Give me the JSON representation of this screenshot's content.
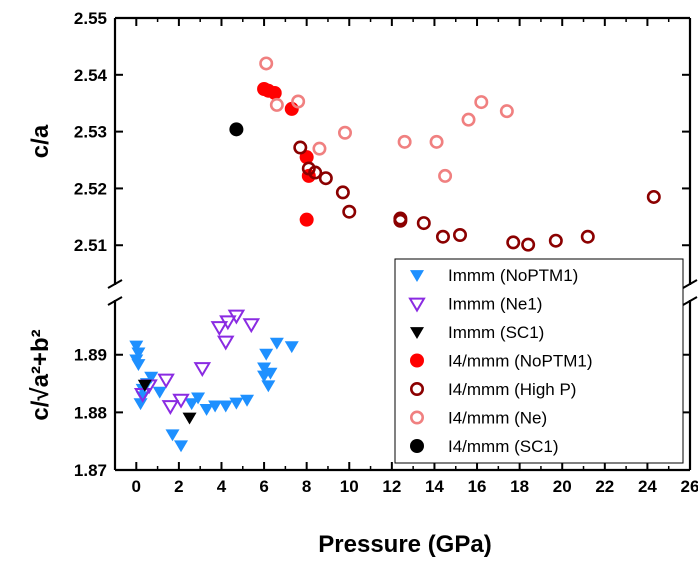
{
  "chart_data": {
    "type": "scatter",
    "xlabel": "Pressure (GPa)",
    "xlim": [
      -1,
      26
    ],
    "xticks": [
      "0",
      "2",
      "4",
      "6",
      "8",
      "10",
      "12",
      "14",
      "16",
      "18",
      "20",
      "22",
      "24",
      "26"
    ],
    "panels": [
      {
        "id": "top",
        "ylabel": "c/a",
        "ylim": [
          2.503,
          2.55
        ],
        "yticks": [
          "2.51",
          "2.52",
          "2.53",
          "2.54",
          "2.55"
        ],
        "series": [
          {
            "name": "I4/mmm (NoPTM1)",
            "color": "#ff0000",
            "marker": "filled-circle",
            "points": [
              [
                6.0,
                2.5375
              ],
              [
                6.2,
                2.5372
              ],
              [
                6.5,
                2.5368
              ],
              [
                7.3,
                2.534
              ],
              [
                8.0,
                2.5145
              ],
              [
                8.0,
                2.5255
              ],
              [
                8.1,
                2.5222
              ]
            ]
          },
          {
            "name": "I4/mmm (High P)",
            "color": "#8b0000",
            "marker": "open-circle",
            "points": [
              [
                7.7,
                2.5272
              ],
              [
                8.1,
                2.5235
              ],
              [
                8.4,
                2.5228
              ],
              [
                8.9,
                2.5218
              ],
              [
                9.7,
                2.5193
              ],
              [
                10.0,
                2.5159
              ],
              [
                12.4,
                2.5147
              ],
              [
                12.4,
                2.5143
              ],
              [
                13.5,
                2.5139
              ],
              [
                14.4,
                2.5115
              ],
              [
                15.2,
                2.5118
              ],
              [
                17.7,
                2.5105
              ],
              [
                18.4,
                2.5101
              ],
              [
                19.7,
                2.5108
              ],
              [
                21.2,
                2.5115
              ],
              [
                24.3,
                2.5185
              ]
            ]
          },
          {
            "name": "I4/mmm (Ne)",
            "color": "#f08080",
            "marker": "open-circle",
            "points": [
              [
                6.1,
                2.542
              ],
              [
                6.6,
                2.5347
              ],
              [
                7.6,
                2.5353
              ],
              [
                8.6,
                2.527
              ],
              [
                9.8,
                2.5298
              ],
              [
                12.6,
                2.5282
              ],
              [
                14.1,
                2.5282
              ],
              [
                14.5,
                2.5222
              ],
              [
                15.6,
                2.5321
              ],
              [
                16.2,
                2.5352
              ],
              [
                17.4,
                2.5336
              ]
            ]
          },
          {
            "name": "I4/mmm (SC1)",
            "color": "#000000",
            "marker": "filled-circle",
            "points": [
              [
                4.7,
                2.5304
              ]
            ]
          }
        ]
      },
      {
        "id": "bottom",
        "ylabel": "c/√a²+b²",
        "ylim": [
          1.87,
          1.8995
        ],
        "yticks": [
          "1.87",
          "1.88",
          "1.89"
        ],
        "series": [
          {
            "name": "Immm (NoPTM1)",
            "color": "#1e90ff",
            "marker": "filled-triangle-down",
            "points": [
              [
                0.0,
                1.8916
              ],
              [
                0.1,
                1.8904
              ],
              [
                0.0,
                1.8892
              ],
              [
                0.1,
                1.8884
              ],
              [
                0.3,
                1.8828
              ],
              [
                0.2,
                1.8816
              ],
              [
                0.3,
                1.8841
              ],
              [
                0.5,
                1.8851
              ],
              [
                0.7,
                1.8862
              ],
              [
                1.1,
                1.8836
              ],
              [
                1.7,
                1.8762
              ],
              [
                2.1,
                1.8743
              ],
              [
                2.6,
                1.8816
              ],
              [
                2.9,
                1.8826
              ],
              [
                3.3,
                1.8806
              ],
              [
                3.7,
                1.8812
              ],
              [
                4.2,
                1.8812
              ],
              [
                4.7,
                1.8817
              ],
              [
                5.2,
                1.8822
              ],
              [
                6.0,
                1.8864
              ],
              [
                6.0,
                1.8878
              ],
              [
                6.1,
                1.8902
              ],
              [
                6.2,
                1.8847
              ],
              [
                6.3,
                1.8869
              ],
              [
                6.6,
                1.8921
              ],
              [
                7.3,
                1.8915
              ]
            ]
          },
          {
            "name": "Immm (Ne1)",
            "color": "#8a2be2",
            "marker": "open-triangle-down",
            "points": [
              [
                0.3,
                1.8832
              ],
              [
                0.6,
                1.8847
              ],
              [
                1.4,
                1.8857
              ],
              [
                1.6,
                1.8811
              ],
              [
                2.1,
                1.8822
              ],
              [
                3.1,
                1.8877
              ],
              [
                3.9,
                1.8948
              ],
              [
                4.2,
                1.8923
              ],
              [
                4.3,
                1.8958
              ],
              [
                4.7,
                1.8968
              ],
              [
                5.4,
                1.8953
              ]
            ]
          },
          {
            "name": "Immm (SC1)",
            "color": "#000000",
            "marker": "filled-triangle-down",
            "points": [
              [
                0.4,
                1.8848
              ],
              [
                2.5,
                1.8791
              ]
            ]
          }
        ]
      }
    ],
    "legend": {
      "placement": "lower-right",
      "entries": [
        {
          "label": "Immm (NoPTM1)",
          "color": "#1e90ff",
          "marker": "filled-triangle-down"
        },
        {
          "label": "Immm (Ne1)",
          "color": "#8a2be2",
          "marker": "open-triangle-down"
        },
        {
          "label": "Immm (SC1)",
          "color": "#000000",
          "marker": "filled-triangle-down"
        },
        {
          "label": "I4/mmm (NoPTM1)",
          "color": "#ff0000",
          "marker": "filled-circle"
        },
        {
          "label": "I4/mmm (High P)",
          "color": "#8b0000",
          "marker": "open-circle"
        },
        {
          "label": "I4/mmm (Ne)",
          "color": "#f08080",
          "marker": "open-circle"
        },
        {
          "label": "I4/mmm (SC1)",
          "color": "#000000",
          "marker": "filled-circle"
        }
      ]
    },
    "axis_break": true,
    "grid": false
  }
}
